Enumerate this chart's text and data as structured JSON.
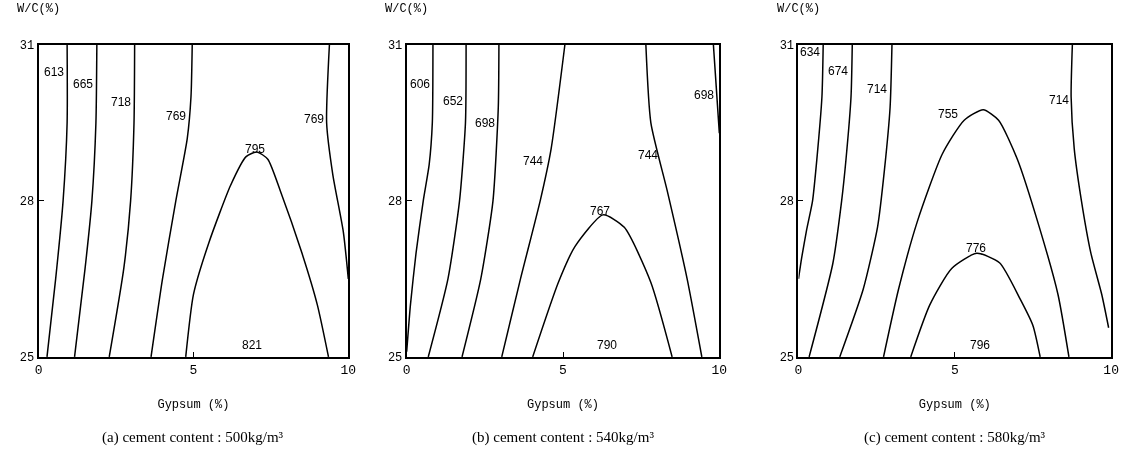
{
  "chart_data": [
    {
      "type": "line",
      "xlabel": "Gypsum (%)",
      "ylabel": "W/C(%)",
      "xlim": [
        0,
        10
      ],
      "ylim": [
        25,
        31
      ],
      "xticks": [
        0,
        5,
        10
      ],
      "yticks": [
        25,
        28,
        31
      ],
      "series": [
        {
          "color": "#000000",
          "x": [
            0.92,
            0.92,
            0.79,
            0.55,
            0.27
          ],
          "values": [
            31,
            29.5,
            28,
            26.5,
            25
          ]
        },
        {
          "color": "#000000",
          "x": [
            1.88,
            1.85,
            1.72,
            1.5,
            1.16
          ],
          "values": [
            31,
            29.5,
            28,
            26.7,
            25
          ]
        },
        {
          "color": "#000000",
          "x": [
            3.1,
            3.08,
            2.97,
            2.75,
            2.28
          ],
          "values": [
            31,
            29.5,
            28,
            26.7,
            25
          ]
        },
        {
          "color": "#000000",
          "x": [
            4.96,
            4.92,
            4.8,
            4.43,
            4.0,
            3.63
          ],
          "values": [
            31,
            30,
            29.2,
            28,
            26.5,
            25
          ]
        },
        {
          "color": "#000000",
          "x": [
            9.39,
            9.3,
            9.5,
            9.84,
            10
          ],
          "values": [
            31,
            29.5,
            28.5,
            27.4,
            26.5
          ]
        },
        {
          "color": "#000000",
          "x": [
            4.75,
            5.0,
            5.5,
            6.2,
            6.7,
            7.05,
            7.4,
            7.8,
            8.5,
            9.0,
            9.36
          ],
          "values": [
            25,
            26.2,
            27.2,
            28.3,
            28.85,
            28.94,
            28.8,
            28.2,
            27.0,
            26.0,
            25
          ]
        }
      ],
      "annotations": [
        {
          "text": "613",
          "x": 0.92,
          "y": 30.29
        },
        {
          "text": "665",
          "x": 1.86,
          "y": 30.05
        },
        {
          "text": "718",
          "x": 3.08,
          "y": 29.71
        },
        {
          "text": "769",
          "x": 4.85,
          "y": 29.43
        },
        {
          "text": "795",
          "x": 7.4,
          "y": 28.8
        },
        {
          "text": "769",
          "x": 9.32,
          "y": 29.38
        },
        "821",
        "(a) cement content : 500kg/m³"
      ]
    },
    {
      "type": "line",
      "xlabel": "Gypsum (%)",
      "ylabel": "W/C(%)",
      "xlim": [
        0,
        10
      ],
      "ylim": [
        25,
        31
      ],
      "xticks": [
        0,
        5,
        10
      ],
      "yticks": [
        25,
        28,
        31
      ],
      "series": [
        {
          "color": "#000000",
          "x": [
            0.84,
            0.82,
            0.72,
            0.53,
            0.3,
            0.12,
            0
          ],
          "values": [
            31,
            29.5,
            28.7,
            28,
            27,
            26,
            25.1
          ]
        },
        {
          "color": "#000000",
          "x": [
            1.9,
            1.88,
            1.69,
            1.32,
            0.69
          ],
          "values": [
            31,
            29.5,
            28,
            26.5,
            25
          ]
        },
        {
          "color": "#000000",
          "x": [
            2.95,
            2.93,
            2.76,
            2.37,
            1.77
          ],
          "values": [
            31,
            29.8,
            28,
            26.5,
            25
          ]
        },
        {
          "color": "#000000",
          "x": [
            5.06,
            4.62,
            4.27,
            3.64,
            3.04
          ],
          "values": [
            31,
            29,
            28,
            26.5,
            25
          ]
        },
        {
          "color": "#000000",
          "x": [
            7.65,
            7.81,
            8.33,
            8.97,
            9.44
          ],
          "values": [
            31,
            29.5,
            28.2,
            26.5,
            25
          ]
        },
        {
          "color": "#000000",
          "x": [
            9.81,
            9.9,
            10
          ],
          "values": [
            31,
            30.2,
            29.3
          ]
        },
        {
          "color": "#000000",
          "x": [
            4.03,
            4.85,
            5.38,
            6.28,
            6.96,
            7.81,
            8.49
          ],
          "values": [
            25,
            26.43,
            27.12,
            27.73,
            27.49,
            26.43,
            25
          ]
        }
      ],
      "annotations": [
        {
          "text": "606",
          "x": 0.83,
          "y": 30.06
        },
        {
          "text": "652",
          "x": 1.89,
          "y": 29.73
        },
        {
          "text": "698",
          "x": 2.91,
          "y": 29.3
        },
        {
          "text": "744",
          "x": 4.47,
          "y": 28.57
        },
        {
          "text": "767",
          "x": 6.6,
          "y": 27.61
        },
        {
          "text": "744",
          "x": 8.14,
          "y": 28.68
        },
        {
          "text": "698",
          "x": 9.94,
          "y": 29.85
        },
        "790",
        "(b) cement content : 540kg/m³"
      ]
    },
    {
      "type": "line",
      "xlabel": "Gypsum (%)",
      "ylabel": "W/C(%)",
      "xlim": [
        0,
        10
      ],
      "ylim": [
        25,
        31
      ],
      "xticks": [
        0,
        5,
        10
      ],
      "yticks": [
        25,
        28,
        31
      ],
      "series": [
        {
          "color": "#000000",
          "x": [
            0.79,
            0.75,
            0.58,
            0.45,
            0.26,
            0.1,
            0
          ],
          "values": [
            31,
            30,
            28.75,
            28,
            27.44,
            26.9,
            26.5
          ]
        },
        {
          "color": "#000000",
          "x": [
            1.72,
            1.68,
            1.52,
            1.38,
            1.1,
            0.34
          ],
          "values": [
            31,
            30,
            28.8,
            28,
            26.8,
            25
          ]
        },
        {
          "color": "#000000",
          "x": [
            2.99,
            2.93,
            2.75,
            2.53,
            2.07,
            1.32
          ],
          "values": [
            31,
            29.8,
            28.6,
            27.5,
            26.3,
            25
          ]
        },
        {
          "color": "#000000",
          "x": [
            2.72,
            3.2,
            3.8,
            4.6,
            5.3,
            5.91,
            6.4,
            7.0,
            7.7,
            8.3,
            8.65
          ],
          "values": [
            25,
            26.3,
            27.6,
            28.9,
            29.55,
            29.75,
            29.55,
            28.8,
            27.5,
            26.2,
            25
          ]
        },
        {
          "color": "#000000",
          "x": [
            8.76,
            8.72,
            8.82,
            9.05,
            9.35,
            9.7,
            9.92
          ],
          "values": [
            31,
            30,
            29,
            28,
            27,
            26.2,
            25.56
          ]
        },
        {
          "color": "#000000",
          "x": [
            3.59,
            4.2,
            4.9,
            5.7,
            6.43,
            7.1,
            7.5,
            7.73
          ],
          "values": [
            25,
            26.0,
            26.7,
            26.99,
            26.81,
            26.1,
            25.6,
            25
          ]
        }
      ],
      "annotations": [
        {
          "text": "634",
          "x": 0.78,
          "y": 30.66
        },
        {
          "text": "674",
          "x": 1.69,
          "y": 30.31
        },
        {
          "text": "714",
          "x": 2.93,
          "y": 29.96
        },
        {
          "text": "755",
          "x": 5.21,
          "y": 29.47
        },
        {
          "text": "776",
          "x": 6.1,
          "y": 26.9
        },
        {
          "text": "714",
          "x": 8.74,
          "y": 29.75
        },
        "796",
        "(c) cement content : 580kg/m³"
      ]
    }
  ]
}
